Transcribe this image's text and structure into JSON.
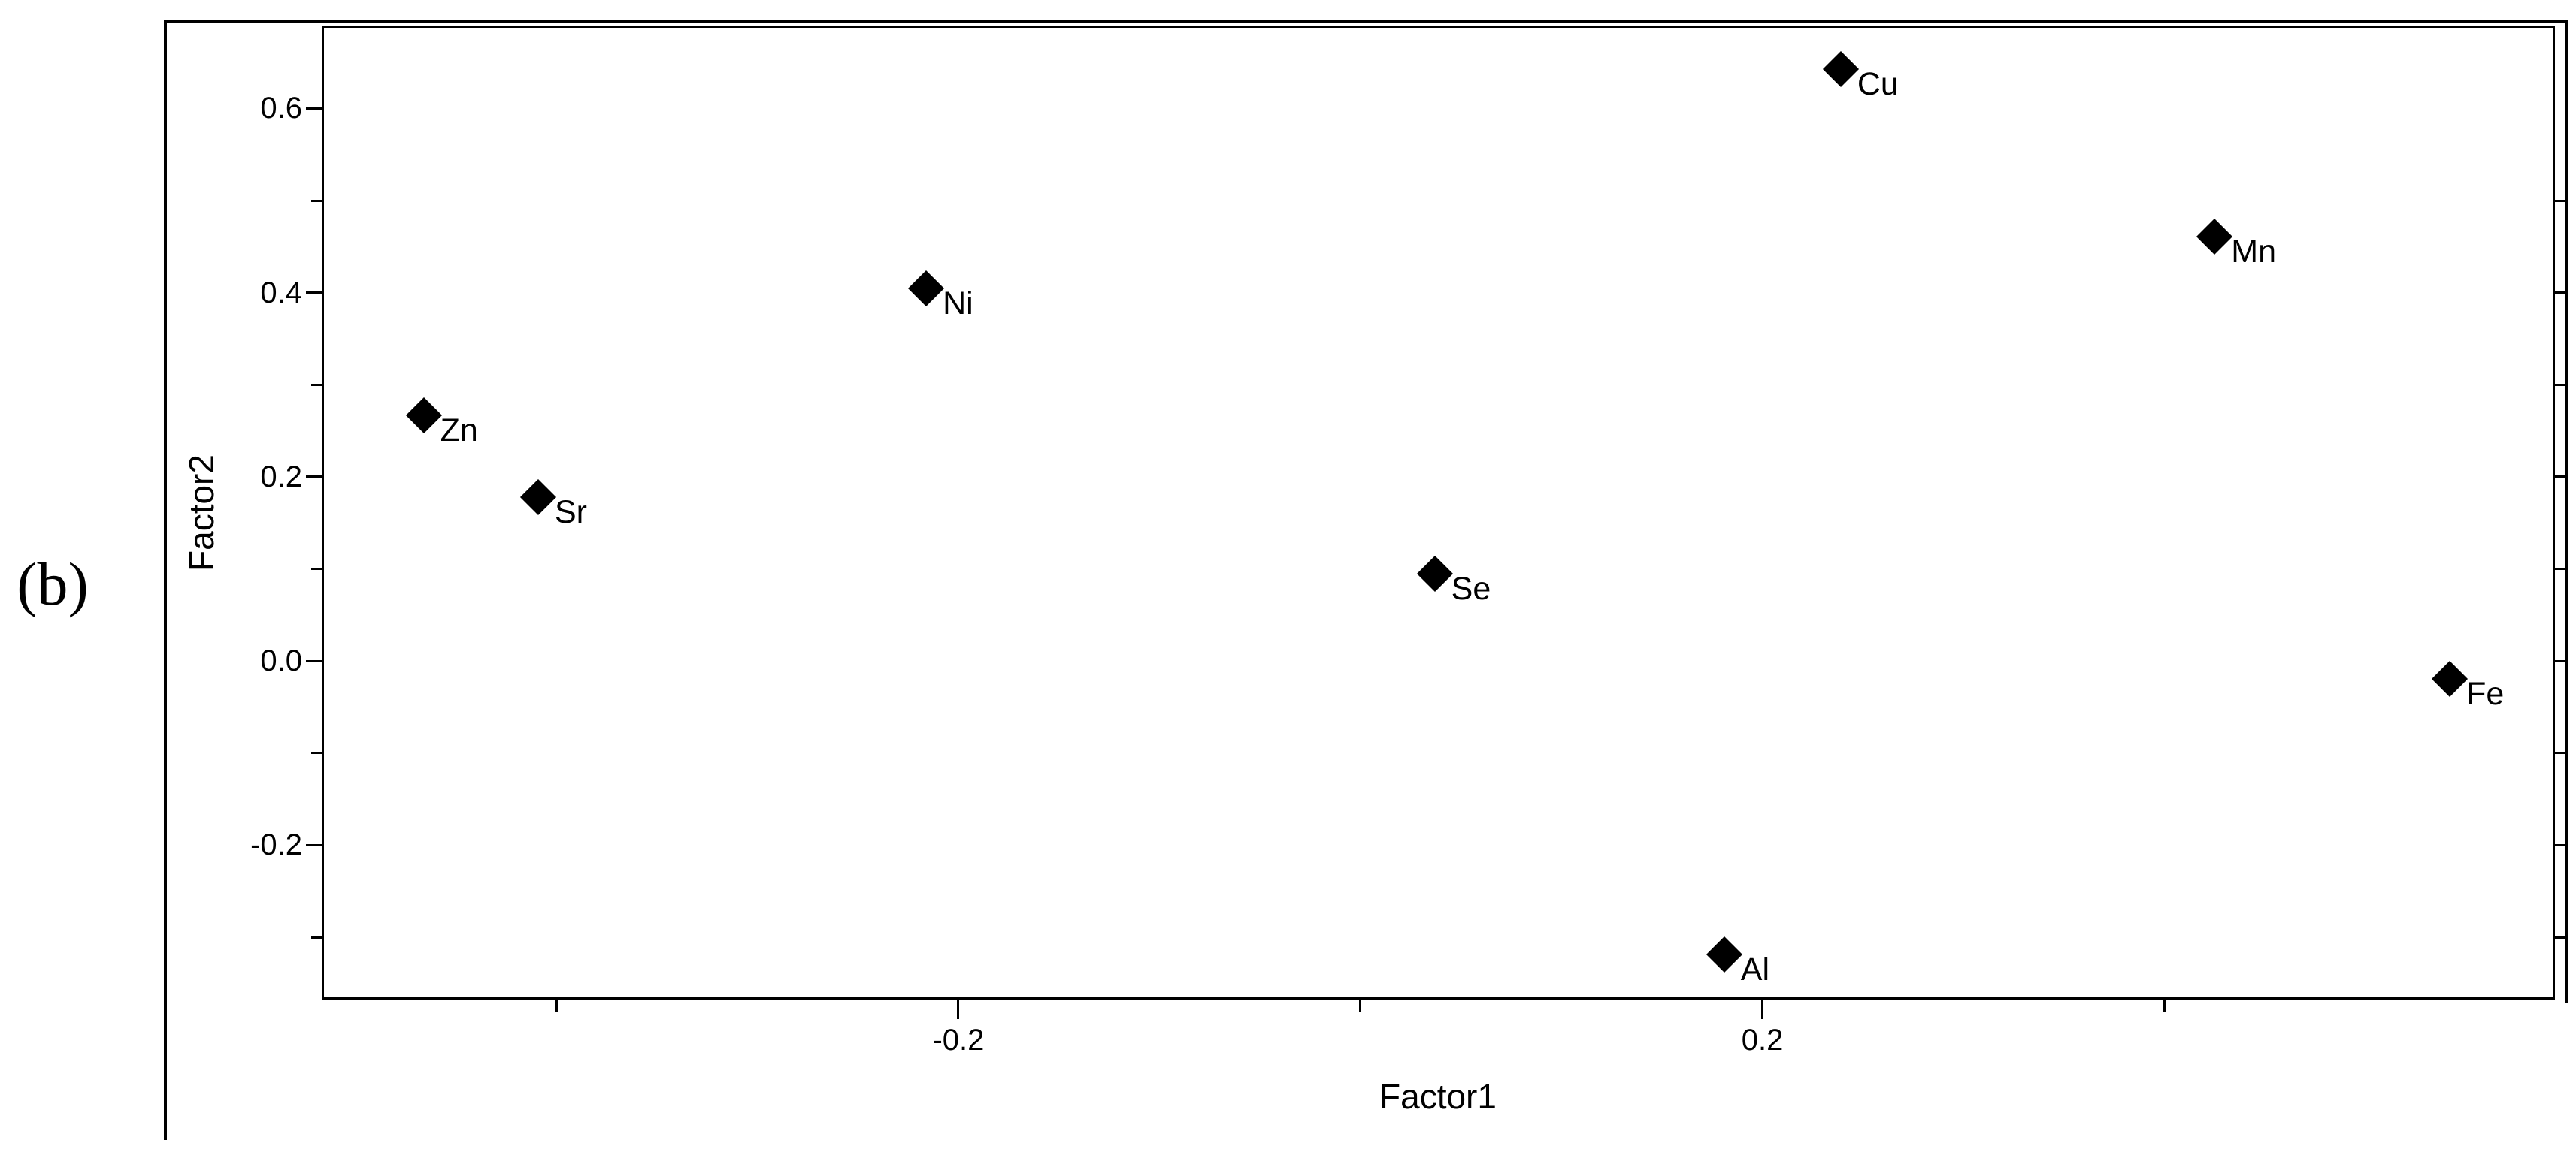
{
  "panel_label": "(b)",
  "colors": {
    "foreground": "#000000",
    "background": "#ffffff"
  },
  "chart_data": {
    "type": "scatter",
    "title": "",
    "xlabel": "Factor1",
    "ylabel": "Factor2",
    "xlim": [
      -0.5167,
      0.5943
    ],
    "ylim": [
      -0.3684,
      0.6901
    ],
    "grid": false,
    "legend": "none",
    "marker": "filled-diamond",
    "marker_color": "#000000",
    "x_ticks_major": {
      "values": [
        -0.2,
        0.2
      ],
      "labels": [
        "-0.2",
        "0.2"
      ]
    },
    "x_ticks_minor": [
      -0.4,
      0.0,
      0.4
    ],
    "y_ticks_major": {
      "values": [
        0.6,
        0.4,
        0.2,
        0.0,
        -0.2
      ],
      "labels": [
        "0.6",
        "0.4",
        "0.2",
        "0.0",
        "-0.2"
      ]
    },
    "y_ticks_minor": [
      0.5,
      0.3,
      0.1,
      -0.1,
      -0.3
    ],
    "y_ticks_right_minor": [
      0.5,
      0.4,
      0.3,
      0.2,
      0.1,
      0.0,
      -0.1,
      -0.2,
      -0.3
    ],
    "points": [
      {
        "label": "Zn",
        "x": -0.466,
        "y": 0.267
      },
      {
        "label": "Sr",
        "x": -0.409,
        "y": 0.178
      },
      {
        "label": "Ni",
        "x": -0.216,
        "y": 0.405
      },
      {
        "label": "Se",
        "x": 0.037,
        "y": 0.095
      },
      {
        "label": "Cu",
        "x": 0.239,
        "y": 0.643
      },
      {
        "label": "Mn",
        "x": 0.425,
        "y": 0.461
      },
      {
        "label": "Fe",
        "x": 0.542,
        "y": -0.019
      },
      {
        "label": "Al",
        "x": 0.181,
        "y": -0.319
      }
    ]
  }
}
